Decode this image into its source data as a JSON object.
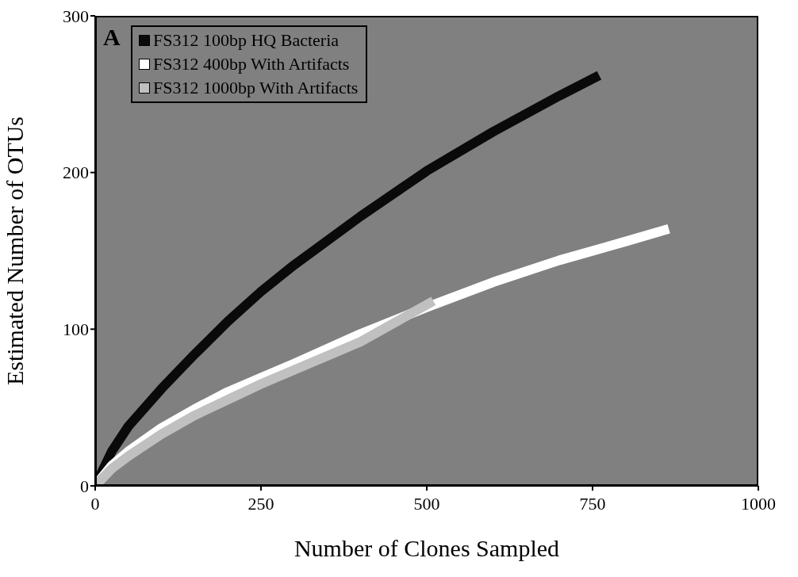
{
  "chart_data": {
    "type": "line",
    "xlabel": "Number of Clones Sampled",
    "ylabel": "Estimated Number of OTUs",
    "annotations": [
      "A"
    ],
    "xlim": [
      0,
      1000
    ],
    "xticks": [
      0,
      250,
      500,
      750,
      1000
    ],
    "ylim": [
      0,
      300
    ],
    "yticks": [
      0,
      100,
      200,
      300
    ],
    "grid": false,
    "legend": "top left",
    "marker": "none",
    "line_style": "solid",
    "series": [
      {
        "name": "FS312 100bp HQ Bacteria",
        "color": "#0a0a0a",
        "x": [
          0,
          25,
          50,
          100,
          150,
          200,
          250,
          300,
          400,
          500,
          600,
          700,
          760
        ],
        "values": [
          0,
          22,
          38,
          62,
          84,
          105,
          124,
          141,
          172,
          201,
          226,
          249,
          262
        ]
      },
      {
        "name": "FS312 400bp With Artifacts",
        "color": "#ffffff",
        "x": [
          0,
          25,
          50,
          100,
          150,
          200,
          250,
          300,
          400,
          500,
          600,
          700,
          800,
          865
        ],
        "values": [
          0,
          13,
          22,
          37,
          49,
          60,
          69,
          78,
          97,
          114,
          130,
          144,
          156,
          164
        ]
      },
      {
        "name": "FS312 1000bp With Artifacts",
        "color": "#c0c0c0",
        "x": [
          0,
          25,
          50,
          100,
          150,
          200,
          250,
          300,
          400,
          510
        ],
        "values": [
          0,
          11,
          19,
          33,
          45,
          55,
          65,
          74,
          92,
          118
        ]
      }
    ]
  }
}
